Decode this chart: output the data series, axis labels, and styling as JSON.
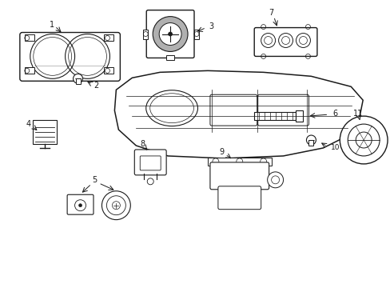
{
  "background": "#ffffff",
  "line_color": "#1a1a1a",
  "lw": 1.0,
  "fig_w": 4.89,
  "fig_h": 3.6
}
